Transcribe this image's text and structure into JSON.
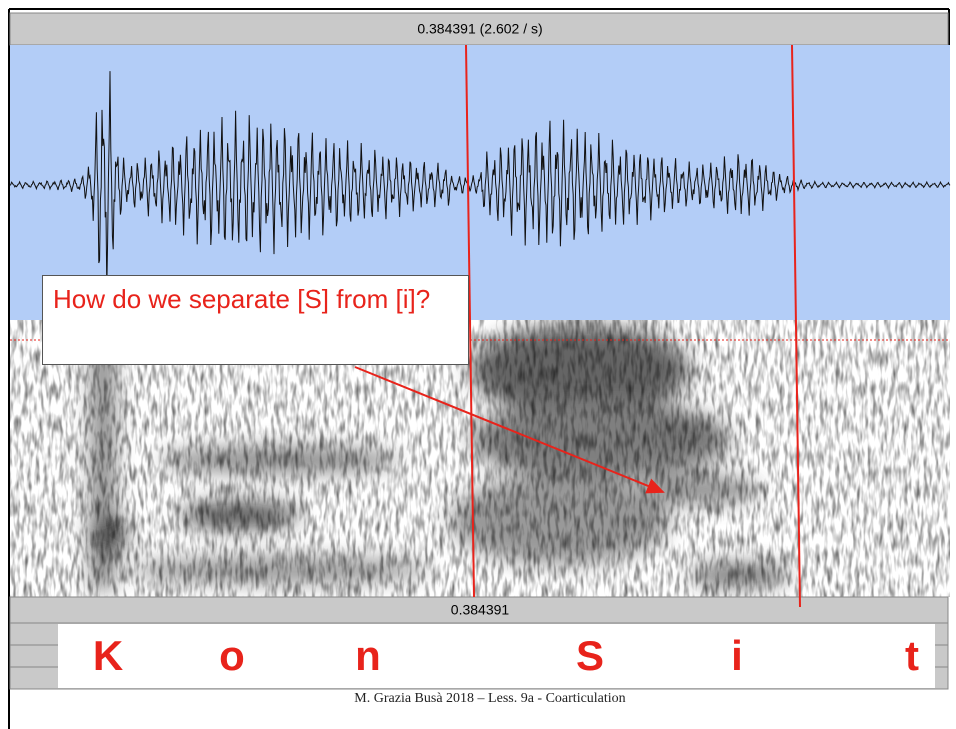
{
  "selection_bar": {
    "text": "0.384391 (2.602 / s)"
  },
  "bottom_bar": {
    "text": "0.384391"
  },
  "callout": {
    "text": "How do we separate [S] from [i]?"
  },
  "segments": [
    "K",
    "o",
    "n",
    "S",
    "i",
    "t"
  ],
  "footer": {
    "text": "M. Grazia Busà 2018 – Less. 9a - Coarticulation"
  }
}
